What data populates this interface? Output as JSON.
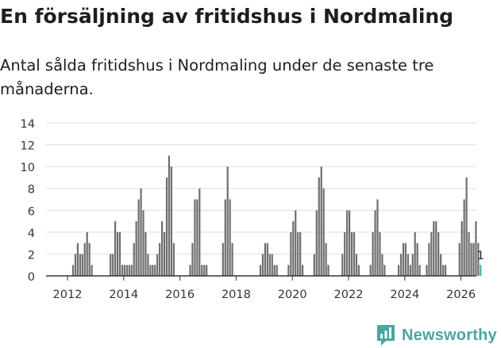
{
  "header": {
    "title": "En försäljning av fritidshus i Nordmaling",
    "subtitle": "Antal sålda fritidshus i Nordmaling under de senaste tre månaderna."
  },
  "brand": {
    "name": "Newsworthy",
    "color": "#4aa6a0"
  },
  "colors": {
    "bar": "#6e6e6e",
    "highlight": "#3fb0a8",
    "grid": "#dddddd",
    "axis": "#333333"
  },
  "chart_data": {
    "type": "bar",
    "title": "En försäljning av fritidshus i Nordmaling",
    "xlabel": "",
    "ylabel": "",
    "ylim": [
      0,
      14
    ],
    "yticks": [
      0,
      2,
      4,
      6,
      8,
      10,
      12,
      14
    ],
    "xticks": [
      2012,
      2014,
      2016,
      2018,
      2020,
      2022,
      2024,
      2026
    ],
    "grid": true,
    "start_month": "2011-01",
    "period": "monthly, rolling 3-month total",
    "values": [
      0,
      0,
      0,
      0,
      0,
      0,
      0,
      0,
      0,
      0,
      0,
      0,
      0,
      0,
      1,
      2,
      3,
      2,
      2,
      3,
      4,
      3,
      1,
      0,
      0,
      0,
      0,
      0,
      0,
      0,
      2,
      2,
      5,
      4,
      4,
      1,
      1,
      1,
      1,
      1,
      3,
      5,
      7,
      8,
      6,
      4,
      2,
      1,
      1,
      1,
      2,
      3,
      5,
      4,
      9,
      11,
      10,
      3,
      0,
      0,
      0,
      0,
      0,
      0,
      1,
      3,
      7,
      7,
      8,
      1,
      1,
      1,
      0,
      0,
      0,
      0,
      0,
      0,
      3,
      7,
      10,
      7,
      3,
      0,
      0,
      0,
      0,
      0,
      0,
      0,
      0,
      0,
      0,
      0,
      1,
      2,
      3,
      3,
      2,
      2,
      1,
      1,
      0,
      0,
      0,
      0,
      1,
      4,
      5,
      6,
      4,
      4,
      1,
      0,
      0,
      0,
      0,
      2,
      6,
      9,
      10,
      8,
      3,
      1,
      0,
      0,
      0,
      0,
      0,
      2,
      4,
      6,
      6,
      4,
      4,
      2,
      1,
      0,
      0,
      0,
      0,
      1,
      4,
      6,
      7,
      4,
      2,
      1,
      0,
      0,
      0,
      0,
      0,
      1,
      2,
      3,
      3,
      2,
      1,
      2,
      4,
      3,
      1,
      0,
      0,
      1,
      3,
      4,
      5,
      5,
      4,
      2,
      1,
      1,
      0,
      0,
      0,
      0,
      0,
      3,
      5,
      7,
      9,
      4,
      3,
      3,
      5,
      3,
      1
    ],
    "highlight": {
      "label": "1",
      "value": 1
    }
  }
}
